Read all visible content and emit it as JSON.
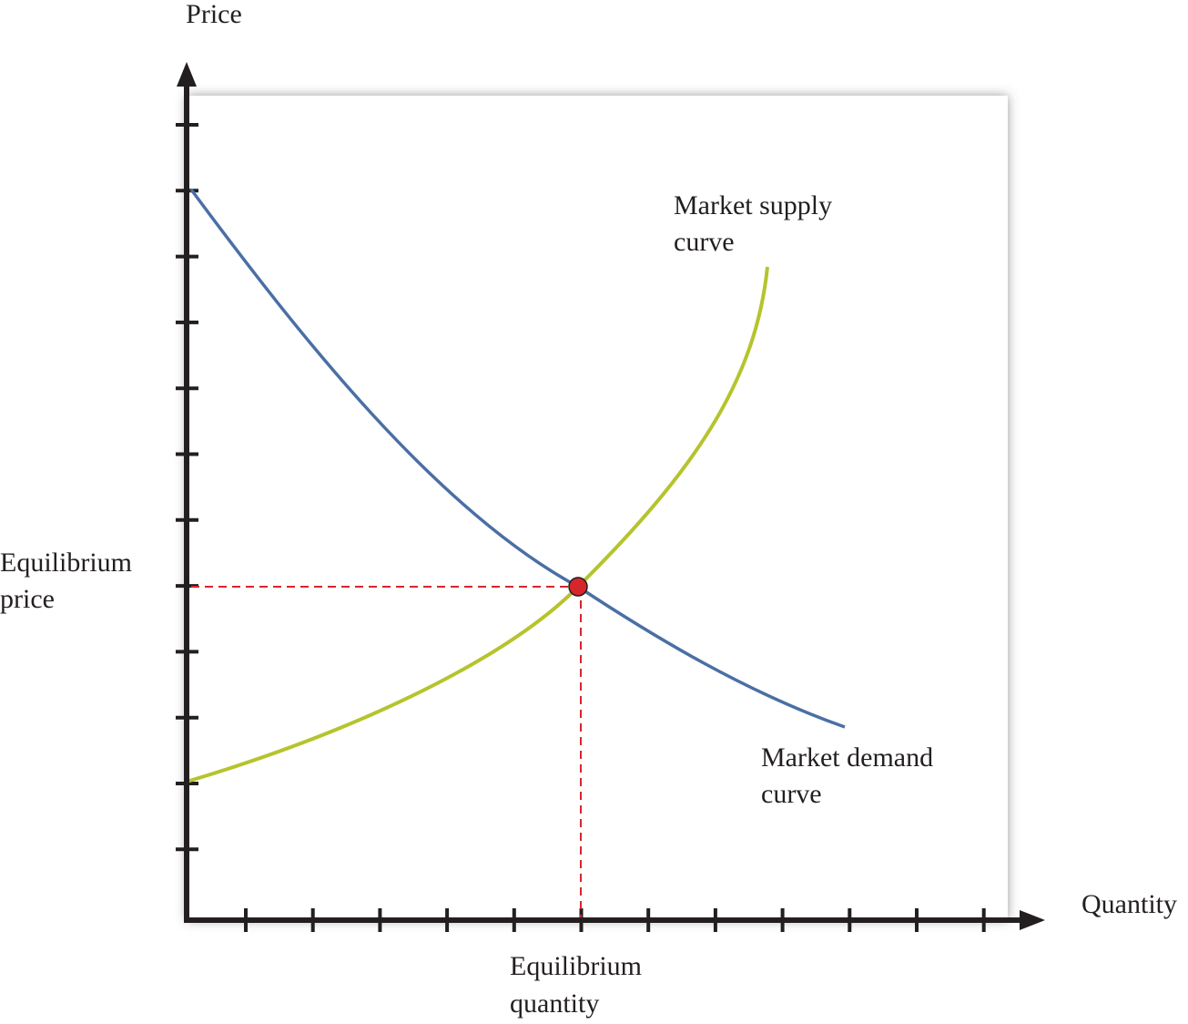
{
  "axes": {
    "y_label": "Price",
    "x_label": "Quantity"
  },
  "labels": {
    "supply": [
      "Market supply",
      "curve"
    ],
    "demand": [
      "Market demand",
      "curve"
    ],
    "equilibrium_price": [
      "Equilibrium",
      "price"
    ],
    "equilibrium_quantity": [
      "Equilibrium",
      "quantity"
    ]
  }
}
